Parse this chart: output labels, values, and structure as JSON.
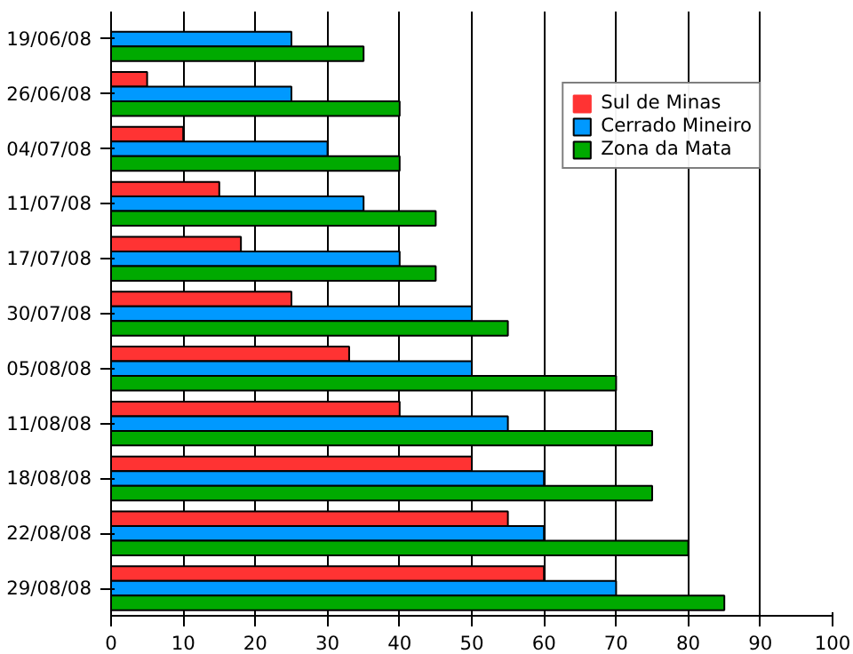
{
  "chart_data": {
    "type": "bar",
    "orientation": "horizontal",
    "categories": [
      "19/06/08",
      "26/06/08",
      "04/07/08",
      "11/07/08",
      "17/07/08",
      "30/07/08",
      "05/08/08",
      "11/08/08",
      "18/08/08",
      "22/08/08",
      "29/08/08"
    ],
    "series": [
      {
        "name": "Sul de Minas",
        "color": "#ff3333",
        "values": [
          0,
          5,
          10,
          15,
          18,
          25,
          33,
          40,
          50,
          55,
          60
        ]
      },
      {
        "name": "Cerrado Mineiro",
        "color": "#0099ff",
        "values": [
          25,
          25,
          30,
          35,
          40,
          50,
          50,
          55,
          60,
          60,
          70
        ]
      },
      {
        "name": "Zona da Mata",
        "color": "#00aa00",
        "values": [
          35,
          40,
          40,
          45,
          45,
          55,
          70,
          75,
          75,
          80,
          85
        ]
      }
    ],
    "xlim": [
      0,
      100
    ],
    "xticks": [
      0,
      10,
      20,
      30,
      40,
      50,
      60,
      70,
      80,
      90,
      100
    ],
    "grid": "x",
    "legend": "top right"
  }
}
